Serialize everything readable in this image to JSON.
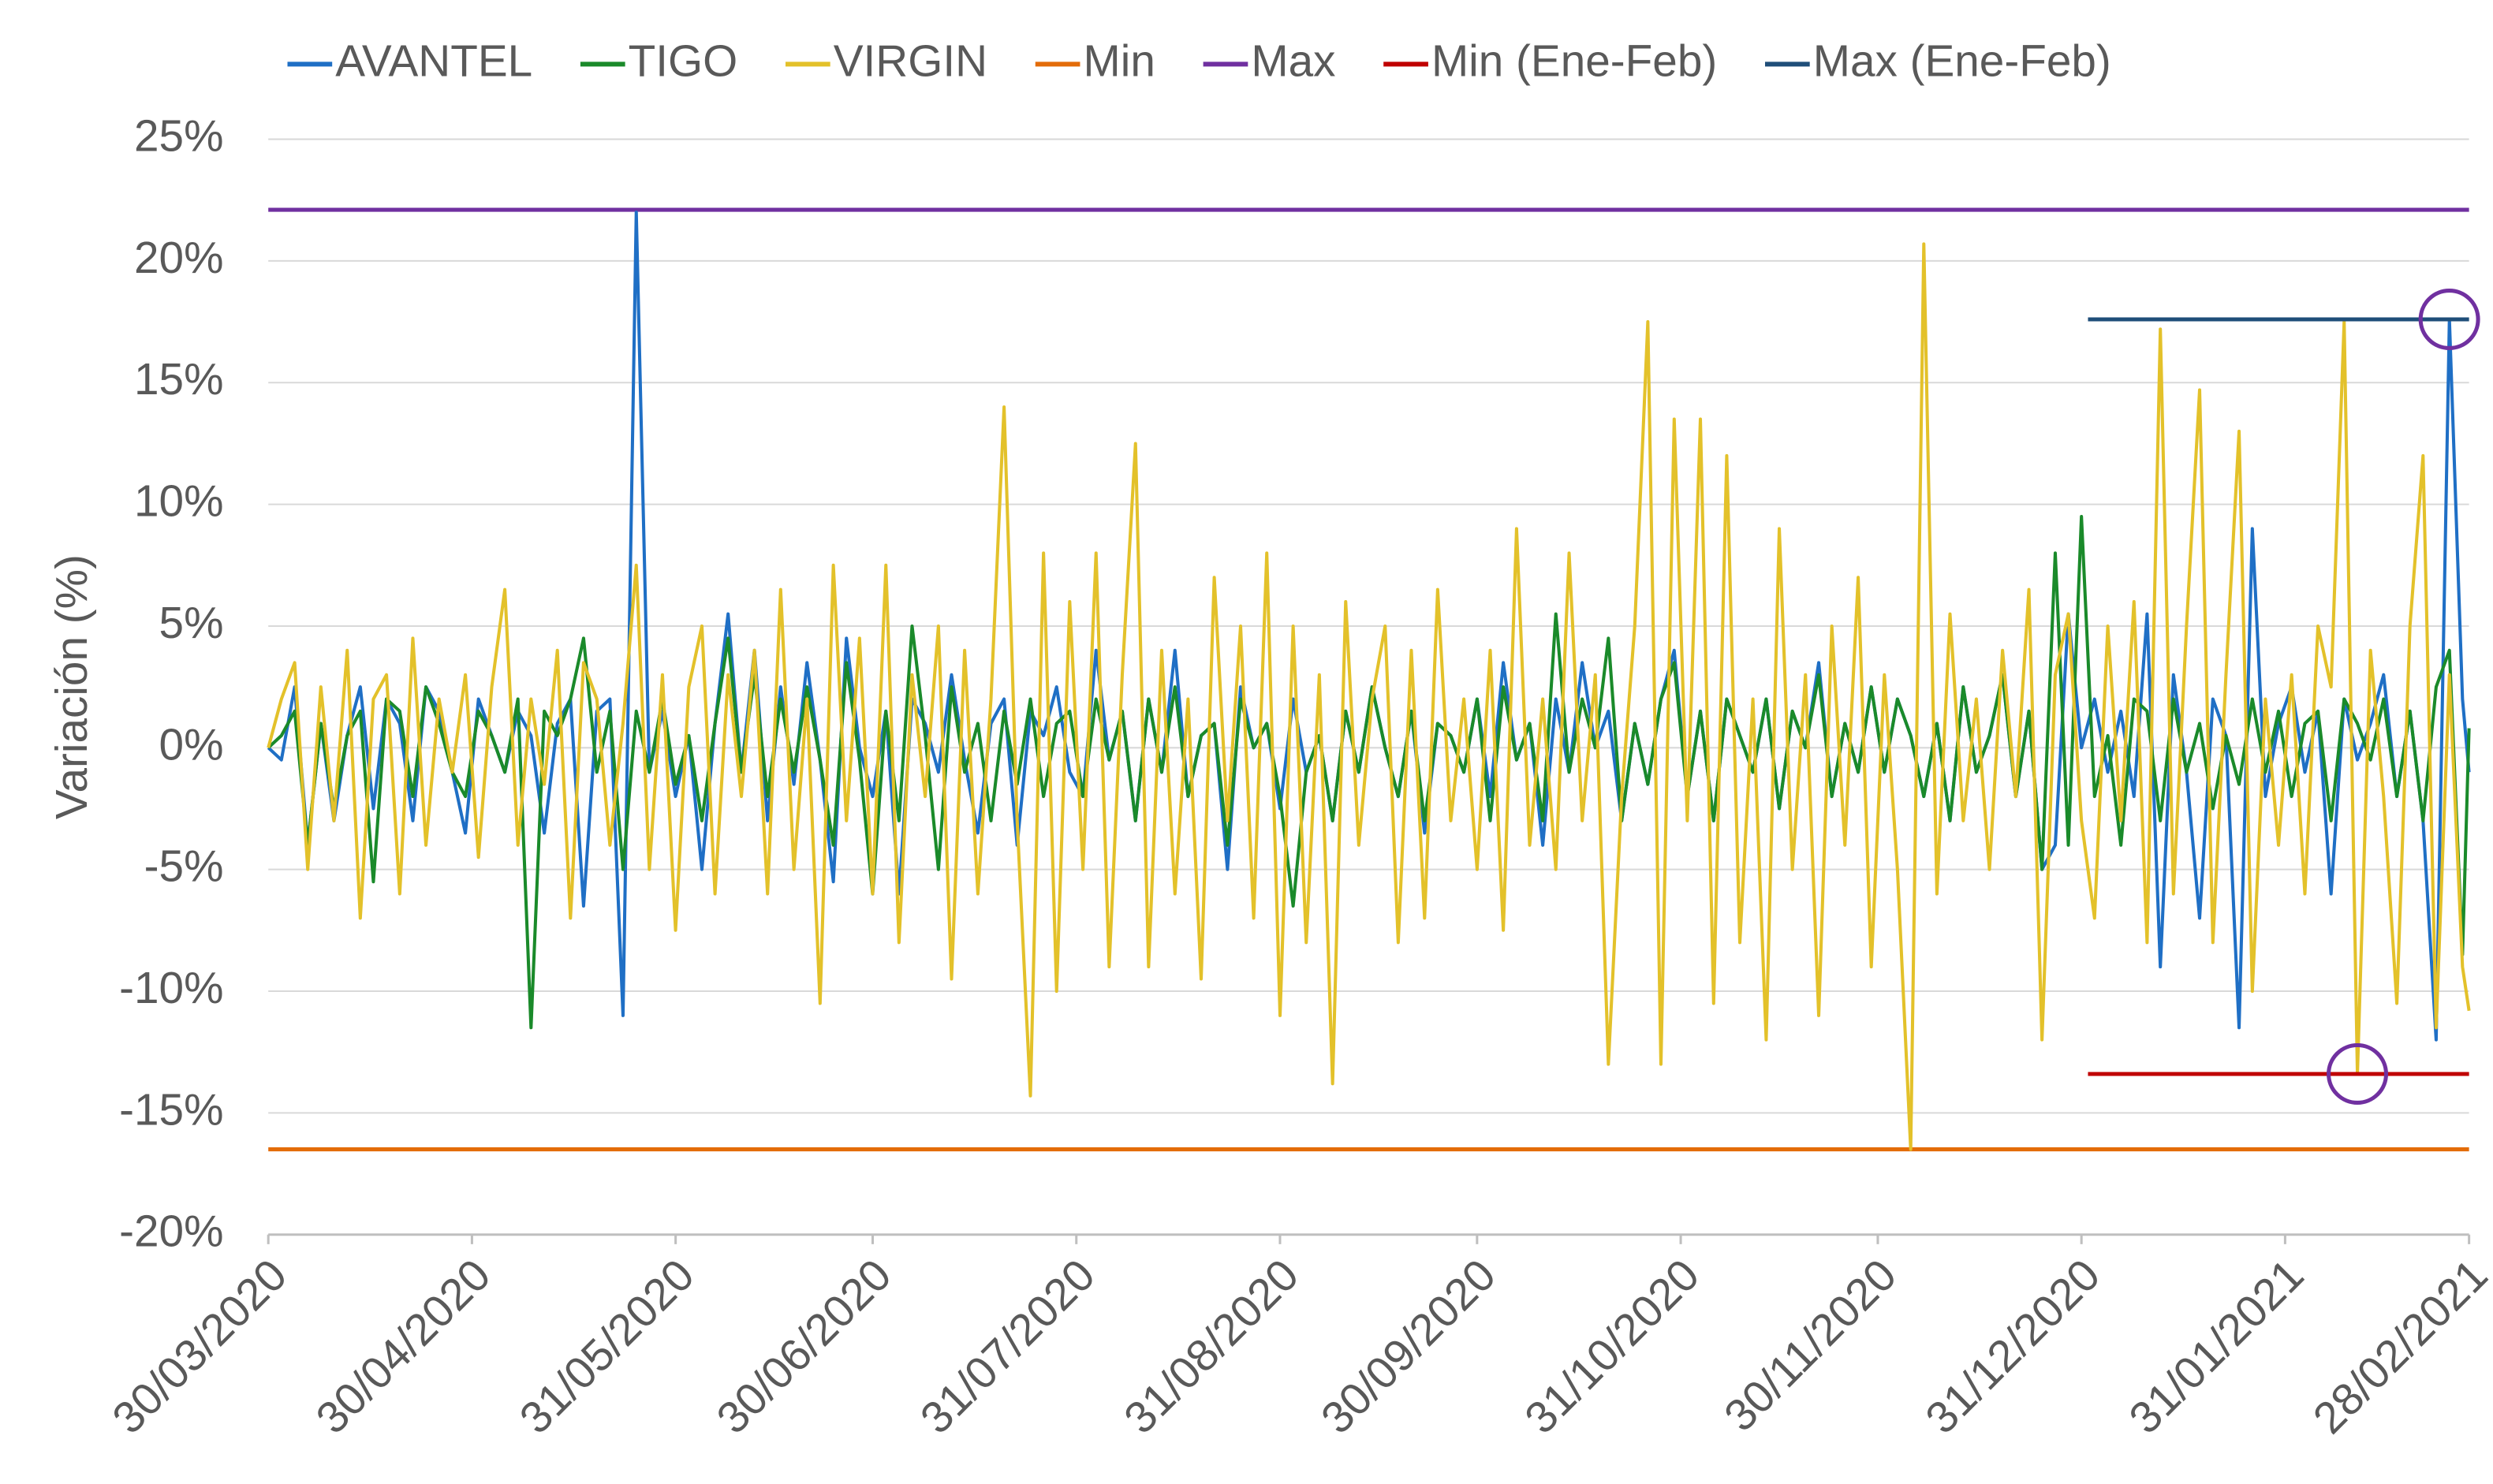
{
  "chart_data": {
    "type": "line",
    "y_label": "Variación (%)",
    "x": [
      "30/03/2020",
      "01/04/2020",
      "03/04/2020",
      "05/04/2020",
      "07/04/2020",
      "09/04/2020",
      "11/04/2020",
      "13/04/2020",
      "15/04/2020",
      "17/04/2020",
      "19/04/2020",
      "21/04/2020",
      "23/04/2020",
      "25/04/2020",
      "27/04/2020",
      "29/04/2020",
      "01/05/2020",
      "03/05/2020",
      "05/05/2020",
      "07/05/2020",
      "09/05/2020",
      "11/05/2020",
      "13/05/2020",
      "15/05/2020",
      "17/05/2020",
      "19/05/2020",
      "21/05/2020",
      "23/05/2020",
      "25/05/2020",
      "27/05/2020",
      "29/05/2020",
      "31/05/2020",
      "02/06/2020",
      "04/06/2020",
      "06/06/2020",
      "08/06/2020",
      "10/06/2020",
      "12/06/2020",
      "14/06/2020",
      "16/06/2020",
      "18/06/2020",
      "20/06/2020",
      "22/06/2020",
      "24/06/2020",
      "26/06/2020",
      "28/06/2020",
      "30/06/2020",
      "02/07/2020",
      "04/07/2020",
      "06/07/2020",
      "08/07/2020",
      "10/07/2020",
      "12/07/2020",
      "14/07/2020",
      "16/07/2020",
      "18/07/2020",
      "20/07/2020",
      "22/07/2020",
      "24/07/2020",
      "26/07/2020",
      "28/07/2020",
      "30/07/2020",
      "01/08/2020",
      "03/08/2020",
      "05/08/2020",
      "07/08/2020",
      "09/08/2020",
      "11/08/2020",
      "13/08/2020",
      "15/08/2020",
      "17/08/2020",
      "19/08/2020",
      "21/08/2020",
      "23/08/2020",
      "25/08/2020",
      "27/08/2020",
      "29/08/2020",
      "31/08/2020",
      "02/09/2020",
      "04/09/2020",
      "06/09/2020",
      "08/09/2020",
      "10/09/2020",
      "12/09/2020",
      "14/09/2020",
      "16/09/2020",
      "18/09/2020",
      "20/09/2020",
      "22/09/2020",
      "24/09/2020",
      "26/09/2020",
      "28/09/2020",
      "30/09/2020",
      "02/10/2020",
      "04/10/2020",
      "06/10/2020",
      "08/10/2020",
      "10/10/2020",
      "12/10/2020",
      "14/10/2020",
      "16/10/2020",
      "18/10/2020",
      "20/10/2020",
      "22/10/2020",
      "24/10/2020",
      "26/10/2020",
      "28/10/2020",
      "30/10/2020",
      "01/11/2020",
      "03/11/2020",
      "05/11/2020",
      "07/11/2020",
      "09/11/2020",
      "11/11/2020",
      "13/11/2020",
      "15/11/2020",
      "17/11/2020",
      "19/11/2020",
      "21/11/2020",
      "23/11/2020",
      "25/11/2020",
      "27/11/2020",
      "29/11/2020",
      "01/12/2020",
      "03/12/2020",
      "05/12/2020",
      "07/12/2020",
      "09/12/2020",
      "11/12/2020",
      "13/12/2020",
      "15/12/2020",
      "17/12/2020",
      "19/12/2020",
      "21/12/2020",
      "23/12/2020",
      "25/12/2020",
      "27/12/2020",
      "29/12/2020",
      "31/12/2020",
      "02/01/2021",
      "04/01/2021",
      "06/01/2021",
      "08/01/2021",
      "10/01/2021",
      "12/01/2021",
      "14/01/2021",
      "16/01/2021",
      "18/01/2021",
      "20/01/2021",
      "22/01/2021",
      "24/01/2021",
      "26/01/2021",
      "28/01/2021",
      "30/01/2021",
      "01/02/2021",
      "03/02/2021",
      "05/02/2021",
      "07/02/2021",
      "09/02/2021",
      "11/02/2021",
      "13/02/2021",
      "15/02/2021",
      "17/02/2021",
      "19/02/2021",
      "21/02/2021",
      "23/02/2021",
      "25/02/2021",
      "27/02/2021",
      "28/02/2021"
    ],
    "series": [
      {
        "name": "AVANTEL",
        "color": "#1f6fc5",
        "values": [
          0,
          -0.5,
          2.5,
          -4,
          1,
          -3,
          0.5,
          2.5,
          -2.5,
          2,
          1,
          -3,
          2.5,
          1.5,
          -1,
          -3.5,
          2,
          0.5,
          -1,
          1.5,
          0.5,
          -3.5,
          1,
          2,
          -6.5,
          1.5,
          2,
          -11,
          22,
          -1,
          1.5,
          -2,
          0.5,
          -5,
          1,
          5.5,
          -1,
          4,
          -3,
          2.5,
          -1.5,
          3.5,
          -0.5,
          -5.5,
          4.5,
          0,
          -2,
          1.5,
          -6,
          2,
          1,
          -1,
          3,
          -0.5,
          -3.5,
          1,
          2,
          -4,
          1.5,
          0.5,
          2.5,
          -1,
          -2,
          4,
          -0.5,
          1.5,
          -3,
          2,
          -1,
          4,
          -2,
          0.5,
          1,
          -5,
          2.5,
          0,
          1,
          -2.5,
          2,
          -1,
          0.5,
          -3,
          1.5,
          -1,
          2.5,
          0,
          -2,
          1.5,
          -3.5,
          1,
          0.5,
          -1,
          2,
          -2,
          3.5,
          -0.5,
          1,
          -4,
          2,
          -1,
          3.5,
          0,
          1.5,
          -3,
          1,
          -1.5,
          2,
          4,
          -2,
          1.5,
          -3,
          2,
          0.5,
          -1,
          2,
          -2.5,
          1.5,
          0,
          3.5,
          -2,
          1,
          -1,
          2.5,
          -1,
          2,
          0.5,
          -2,
          1,
          -3,
          2.5,
          -1,
          0.5,
          3,
          -2,
          1.5,
          -5,
          -4,
          5.5,
          0,
          2,
          -1,
          1.5,
          -2,
          5.5,
          -9,
          3,
          -1,
          -7,
          2,
          0.5,
          -11.5,
          9,
          -2,
          1,
          2.5,
          -1,
          1.5,
          -6,
          2,
          -0.5,
          1,
          3,
          -2,
          1.5,
          -3,
          -12,
          17.6,
          2,
          -1
        ]
      },
      {
        "name": "TIGO",
        "color": "#1a8a2a",
        "values": [
          0,
          0.5,
          1.5,
          -4,
          1,
          -2.5,
          0.5,
          1.5,
          -5.5,
          2,
          1.5,
          -2,
          2.5,
          1,
          -1,
          -2,
          1.5,
          0.5,
          -1,
          2,
          -11.5,
          1.5,
          0.5,
          2,
          4.5,
          -1,
          1.5,
          -5,
          1.5,
          -1,
          2,
          -1.5,
          0.5,
          -3,
          1,
          4.5,
          -1,
          3,
          -2,
          2,
          -1,
          2.5,
          -0.5,
          -4,
          3.5,
          -0.5,
          -6,
          1.5,
          -3,
          5,
          0.5,
          -5,
          2.5,
          -1,
          1,
          -3,
          1.5,
          -1.5,
          2,
          -2,
          1,
          1.5,
          -2,
          2,
          -0.5,
          1.5,
          -3,
          2,
          -1,
          2.5,
          -2,
          0.5,
          1,
          -4,
          2,
          0,
          1,
          -2,
          -6.5,
          -1,
          0.5,
          -3,
          1.5,
          -1,
          2.5,
          0,
          -2,
          1.5,
          -3,
          1,
          0.5,
          -1,
          2,
          -3,
          2.5,
          -0.5,
          1,
          -3,
          5.5,
          -1,
          2,
          0,
          4.5,
          -3,
          1,
          -1.5,
          2,
          3.5,
          -2,
          1.5,
          -3,
          2,
          0.5,
          -1,
          2,
          -2.5,
          1.5,
          0,
          3,
          -2,
          1,
          -1,
          2.5,
          -1,
          2,
          0.5,
          -2,
          1,
          -3,
          2.5,
          -1,
          0.5,
          3,
          -2,
          1.5,
          -5,
          8,
          -4,
          9.5,
          -2,
          0.5,
          -4,
          2,
          1.5,
          -3,
          2,
          -1,
          1,
          -2.5,
          0.5,
          -1.5,
          2,
          -1,
          1.5,
          -2,
          1,
          1.5,
          -3,
          2,
          1,
          -0.5,
          2,
          -2,
          1.5,
          -3,
          2.5,
          4,
          -8.5,
          0.8
        ]
      },
      {
        "name": "VIRGIN",
        "color": "#e3c12a",
        "values": [
          0,
          2,
          3.5,
          -5,
          2.5,
          -3,
          4,
          -7,
          2,
          3,
          -6,
          4.5,
          -4,
          2,
          -1,
          3,
          -4.5,
          2.5,
          6.5,
          -4,
          2,
          -1.5,
          4,
          -7,
          3.5,
          2,
          -4,
          1,
          7.5,
          -5,
          3,
          -7.5,
          2.5,
          5,
          -6,
          3,
          -2,
          4,
          -6,
          6.5,
          -5,
          2,
          -10.5,
          7.5,
          -3,
          4.5,
          -6,
          7.5,
          -8,
          3,
          -2,
          5,
          -9.5,
          4,
          -6,
          2,
          14,
          -3,
          -14.3,
          8,
          -10,
          6,
          -5,
          8,
          -9,
          3,
          12.5,
          -9,
          4,
          -6,
          2,
          -9.5,
          7,
          -3,
          5,
          -7,
          8,
          -11,
          5,
          -8,
          3,
          -13.8,
          6,
          -4,
          2,
          5,
          -8,
          4,
          -7,
          6.5,
          -3,
          2,
          -5,
          4,
          -7.5,
          9,
          -4,
          2,
          -5,
          8,
          -3,
          3,
          -13,
          -2,
          5,
          17.5,
          -13,
          13.5,
          -3,
          13.5,
          -10.5,
          12,
          -8,
          2,
          -12,
          9,
          -5,
          3,
          -11,
          5,
          -4,
          7,
          -9,
          3,
          -5,
          -16.5,
          20.7,
          -6,
          5.5,
          -3,
          2,
          -5,
          4,
          -2,
          6.5,
          -12,
          3,
          5.5,
          -3,
          -7,
          5,
          -3,
          6,
          -8,
          17.2,
          -6,
          5,
          14.7,
          -8,
          3,
          13,
          -10,
          2,
          -4,
          3,
          -6,
          5,
          2.5,
          17.5,
          -13.4,
          4,
          -2,
          -10.5,
          5,
          12,
          -11.5,
          3,
          -9,
          -10.8
        ]
      },
      {
        "name": "Min",
        "color": "#e36c09",
        "x": [
          "30/03/2020",
          "28/02/2021"
        ],
        "values": [
          -16.5,
          -16.5
        ]
      },
      {
        "name": "Max",
        "color": "#7030a0",
        "x": [
          "30/03/2020",
          "28/02/2021"
        ],
        "values": [
          22.1,
          22.1
        ]
      },
      {
        "name": "Min (Ene-Feb)",
        "color": "#c00000",
        "x": [
          "01/01/2021",
          "28/02/2021"
        ],
        "values": [
          -13.4,
          -13.4
        ]
      },
      {
        "name": "Max (Ene-Feb)",
        "color": "#1f4e79",
        "x": [
          "01/01/2021",
          "28/02/2021"
        ],
        "values": [
          17.6,
          17.6
        ]
      }
    ],
    "ylim": [
      -20,
      25
    ],
    "yticks": [
      {
        "value": -20,
        "label": "-20%"
      },
      {
        "value": -15,
        "label": "-15%"
      },
      {
        "value": -10,
        "label": "-10%"
      },
      {
        "value": -5,
        "label": "-5%"
      },
      {
        "value": 0,
        "label": "0%"
      },
      {
        "value": 5,
        "label": "5%"
      },
      {
        "value": 10,
        "label": "10%"
      },
      {
        "value": 15,
        "label": "15%"
      },
      {
        "value": 20,
        "label": "20%"
      },
      {
        "value": 25,
        "label": "25%"
      }
    ],
    "xlim": [
      "30/03/2020",
      "28/02/2021"
    ],
    "xticks": [
      "30/03/2020",
      "30/04/2020",
      "31/05/2020",
      "30/06/2020",
      "31/07/2020",
      "31/08/2020",
      "30/09/2020",
      "31/10/2020",
      "30/11/2020",
      "31/12/2020",
      "31/01/2021",
      "28/02/2021"
    ],
    "grid": true,
    "legend": "top"
  }
}
